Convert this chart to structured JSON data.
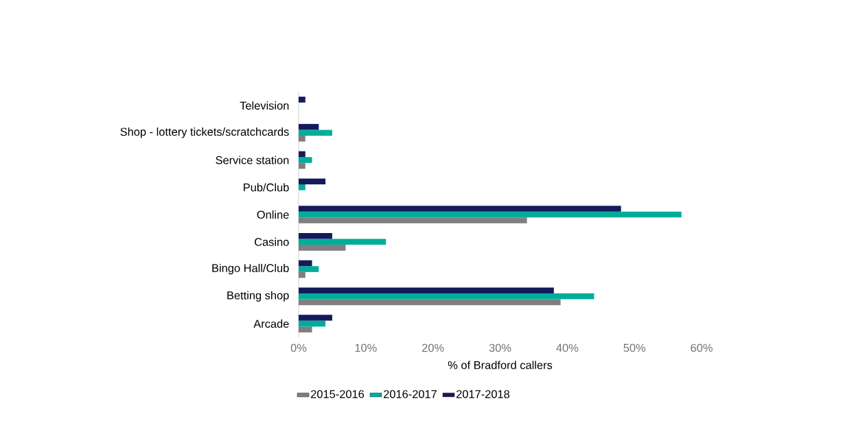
{
  "chart_data": {
    "type": "bar",
    "orientation": "horizontal",
    "xlabel": "% of Bradford callers",
    "categories": [
      "Television",
      "Shop - lottery tickets/scratchcards",
      "Service station",
      "Pub/Club",
      "Online",
      "Casino",
      "Bingo Hall/Club",
      "Betting shop",
      "Arcade"
    ],
    "series": [
      {
        "name": "2015-2016",
        "color": "#7f7f7f",
        "values": [
          0,
          1,
          1,
          0,
          34,
          7,
          1,
          39,
          2
        ]
      },
      {
        "name": "2016-2017",
        "color": "#00ad9a",
        "values": [
          0,
          5,
          2,
          1,
          57,
          13,
          3,
          44,
          4
        ]
      },
      {
        "name": "2017-2018",
        "color": "#141b5c",
        "values": [
          1,
          3,
          1,
          4,
          48,
          5,
          2,
          38,
          5
        ]
      }
    ],
    "xlim": [
      0,
      60
    ],
    "xticks": [
      {
        "value": 0,
        "label": "0%"
      },
      {
        "value": 10,
        "label": "10%"
      },
      {
        "value": 20,
        "label": "20%"
      },
      {
        "value": 30,
        "label": "30%"
      },
      {
        "value": 40,
        "label": "40%"
      },
      {
        "value": 50,
        "label": "50%"
      },
      {
        "value": 60,
        "label": "60%"
      }
    ],
    "grid": false,
    "legend": "bottom"
  }
}
